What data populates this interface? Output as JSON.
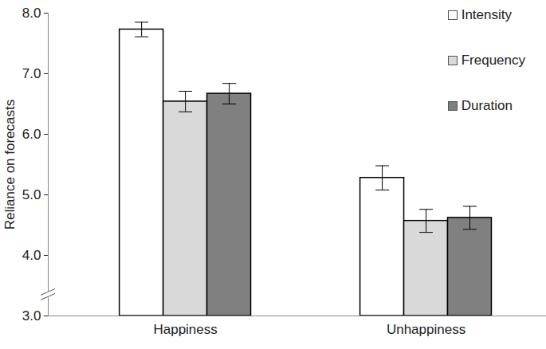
{
  "chart_data": {
    "type": "bar",
    "y_label": "Reliance on forecasts",
    "categories": [
      "Happiness",
      "Unhappiness"
    ],
    "series": [
      {
        "name": "Intensity",
        "color": "#ffffff",
        "values": [
          7.73,
          5.28
        ],
        "errors": [
          0.12,
          0.2
        ]
      },
      {
        "name": "Frequency",
        "color": "#d9d9d9",
        "values": [
          6.54,
          4.57
        ],
        "errors": [
          0.17,
          0.19
        ]
      },
      {
        "name": "Duration",
        "color": "#808080",
        "values": [
          6.67,
          4.62
        ],
        "errors": [
          0.17,
          0.19
        ]
      }
    ],
    "ylim": [
      3,
      8
    ],
    "yticks": [
      {
        "value": 3,
        "label": "3.0"
      },
      {
        "value": 4,
        "label": "4.0"
      },
      {
        "value": 5,
        "label": "5.0"
      },
      {
        "value": 6,
        "label": "6.0"
      },
      {
        "value": 7,
        "label": "7.0"
      },
      {
        "value": 8,
        "label": "8.0"
      }
    ],
    "grid": false,
    "legend": "top-right"
  }
}
